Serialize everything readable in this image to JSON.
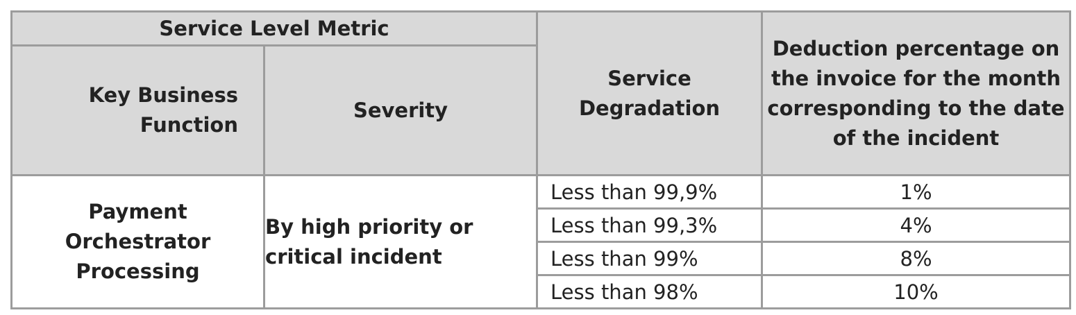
{
  "header": {
    "service_level_metric": "Service Level Metric",
    "key_business_function": "Key Business Function",
    "severity": "Severity",
    "service_degradation": "Service Degradation",
    "deduction_percentage": "Deduction percentage on the invoice for the month corresponding to the date of the incident"
  },
  "body": {
    "function": "Payment Orchestrator Processing",
    "severity": "By high priority or critical incident",
    "rows": [
      {
        "degradation": "Less than 99,9%",
        "deduction": "1%"
      },
      {
        "degradation": "Less than 99,3%",
        "deduction": "4%"
      },
      {
        "degradation": "Less than 99%",
        "deduction": "8%"
      },
      {
        "degradation": "Less than 98%",
        "deduction": "10%"
      }
    ]
  }
}
